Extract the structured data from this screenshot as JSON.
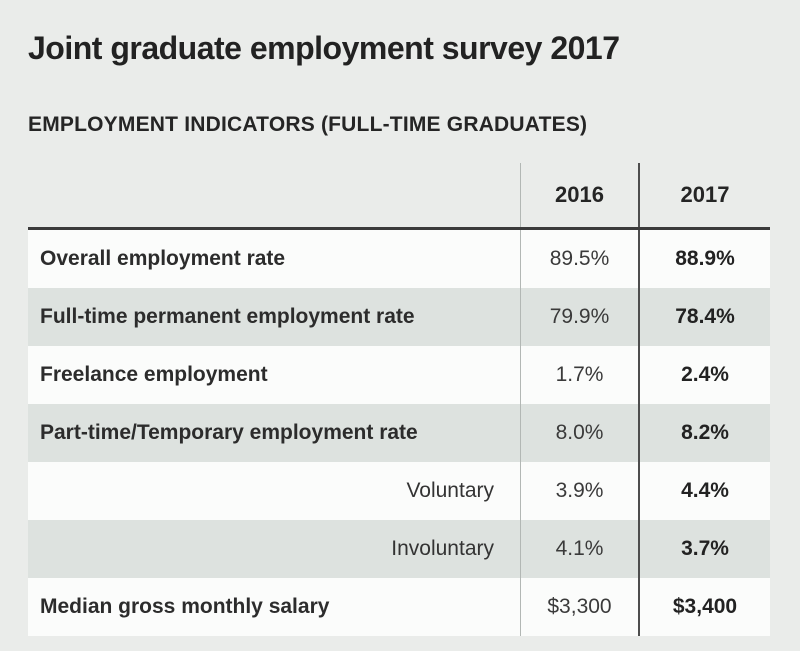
{
  "page": {
    "title": "Joint graduate employment survey 2017",
    "subtitle": "EMPLOYMENT INDICATORS (FULL-TIME GRADUATES)"
  },
  "chart_data": {
    "type": "table",
    "title": "Joint graduate employment survey 2017",
    "subtitle": "EMPLOYMENT INDICATORS (FULL-TIME GRADUATES)",
    "columns": [
      "2016",
      "2017"
    ],
    "rows": [
      {
        "label": "Overall employment rate",
        "indent": false,
        "v2016": "89.5%",
        "v2017": "88.9%"
      },
      {
        "label": "Full-time permanent employment rate",
        "indent": false,
        "v2016": "79.9%",
        "v2017": "78.4%"
      },
      {
        "label": "Freelance employment",
        "indent": false,
        "v2016": "1.7%",
        "v2017": "2.4%"
      },
      {
        "label": "Part-time/Temporary employment rate",
        "indent": false,
        "v2016": "8.0%",
        "v2017": "8.2%"
      },
      {
        "label": "Voluntary",
        "indent": true,
        "v2016": "3.9%",
        "v2017": "4.4%"
      },
      {
        "label": "Involuntary",
        "indent": true,
        "v2016": "4.1%",
        "v2017": "3.7%"
      },
      {
        "label": "Median gross monthly salary",
        "indent": false,
        "v2016": "$3,300",
        "v2017": "$3,400"
      }
    ],
    "series": [
      {
        "name": "2016",
        "values": [
          89.5,
          79.9,
          1.7,
          8.0,
          3.9,
          4.1,
          3300
        ]
      },
      {
        "name": "2017",
        "values": [
          88.9,
          78.4,
          2.4,
          8.2,
          4.4,
          3.7,
          3400
        ]
      }
    ],
    "layout": {
      "bold_column": "2017",
      "alternating_row_color": "#dde2df",
      "header_rule_color": "#3b3b3b"
    }
  }
}
